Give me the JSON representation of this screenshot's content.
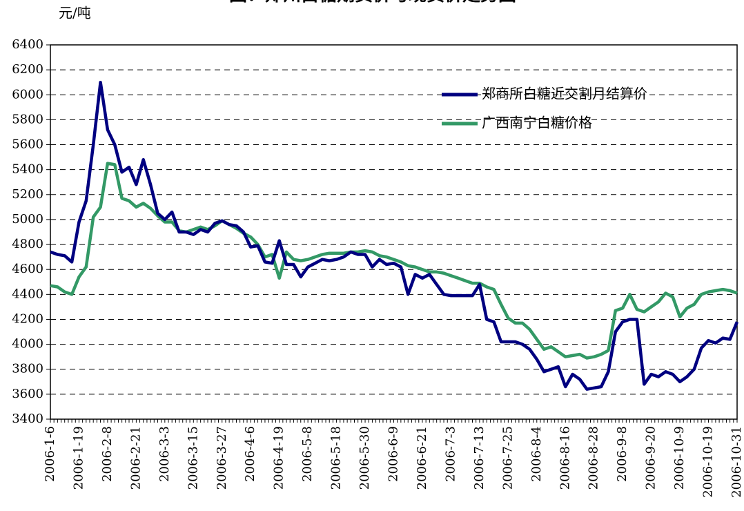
{
  "chart_data": {
    "type": "line",
    "title": "图：郑州白糖期货价与现货价走势图",
    "y_label": "元/吨",
    "categories": [
      "2006-1-6",
      null,
      null,
      null,
      "2006-1-19",
      null,
      null,
      null,
      "2006-2-8",
      null,
      null,
      null,
      "2006-2-21",
      null,
      null,
      null,
      "2006-3-3",
      null,
      null,
      null,
      "2006-3-15",
      null,
      null,
      null,
      "2006-3-27",
      null,
      null,
      null,
      "2006-4-6",
      null,
      null,
      null,
      "2006-4-19",
      null,
      null,
      null,
      "2006-5-8",
      null,
      null,
      null,
      "2006-5-18",
      null,
      null,
      null,
      "2006-5-30",
      null,
      null,
      null,
      "2006-6-9",
      null,
      null,
      null,
      "2006-6-21",
      null,
      null,
      null,
      "2006-7-3",
      null,
      null,
      null,
      "2006-7-13",
      null,
      null,
      null,
      "2006-7-25",
      null,
      null,
      null,
      "2006-8-4",
      null,
      null,
      null,
      "2006-8-16",
      null,
      null,
      null,
      "2006-8-28",
      null,
      null,
      null,
      "2006-9-8",
      null,
      null,
      null,
      "2006-9-20",
      null,
      null,
      null,
      "2006-10-9",
      null,
      null,
      null,
      "2006-10-19",
      null,
      null,
      null,
      "2006-10-31"
    ],
    "series": [
      {
        "name": "郑商所白糖近交割月结算价",
        "color": "#000080",
        "values": [
          4740,
          4720,
          4710,
          4660,
          4980,
          5150,
          5600,
          6100,
          5720,
          5600,
          5380,
          5420,
          5280,
          5480,
          5280,
          5050,
          5000,
          5060,
          4900,
          4900,
          4880,
          4920,
          4900,
          4970,
          4990,
          4960,
          4950,
          4900,
          4780,
          4790,
          4660,
          4650,
          4830,
          4640,
          4640,
          4540,
          4620,
          4650,
          4680,
          4670,
          4680,
          4700,
          4740,
          4720,
          4720,
          4620,
          4680,
          4640,
          4650,
          4620,
          4400,
          4560,
          4530,
          4560,
          4480,
          4400,
          4390,
          4390,
          4390,
          4390,
          4480,
          4200,
          4180,
          4020,
          4020,
          4020,
          4000,
          3960,
          3880,
          3780,
          3800,
          3820,
          3660,
          3760,
          3720,
          3640,
          3650,
          3660,
          3780,
          4100,
          4180,
          4200,
          4200,
          3680,
          3760,
          3740,
          3780,
          3760,
          3700,
          3740,
          3800,
          3970,
          4030,
          4010,
          4050,
          4040,
          4180
        ]
      },
      {
        "name": "广西南宁白糖价格",
        "color": "#339966",
        "values": [
          4470,
          4460,
          4420,
          4400,
          4540,
          4620,
          5020,
          5100,
          5450,
          5440,
          5170,
          5150,
          5100,
          5130,
          5090,
          5030,
          4980,
          4980,
          4910,
          4900,
          4920,
          4940,
          4920,
          4950,
          4990,
          4960,
          4930,
          4890,
          4860,
          4800,
          4700,
          4720,
          4530,
          4740,
          4680,
          4670,
          4680,
          4700,
          4720,
          4730,
          4730,
          4730,
          4740,
          4740,
          4750,
          4740,
          4710,
          4700,
          4680,
          4660,
          4630,
          4620,
          4600,
          4580,
          4580,
          4570,
          4550,
          4530,
          4510,
          4490,
          4490,
          4460,
          4440,
          4320,
          4210,
          4170,
          4170,
          4120,
          4040,
          3960,
          3980,
          3940,
          3900,
          3910,
          3920,
          3890,
          3900,
          3920,
          3950,
          4270,
          4290,
          4400,
          4280,
          4260,
          4300,
          4340,
          4410,
          4380,
          4220,
          4290,
          4320,
          4400,
          4420,
          4430,
          4440,
          4430,
          4410
        ]
      }
    ],
    "ylim": [
      3400,
      6400
    ],
    "yticks": [
      3400,
      3600,
      3800,
      4000,
      4200,
      4400,
      4600,
      4800,
      5000,
      5200,
      5400,
      5600,
      5800,
      6000,
      6200,
      6400
    ],
    "grid": true
  }
}
